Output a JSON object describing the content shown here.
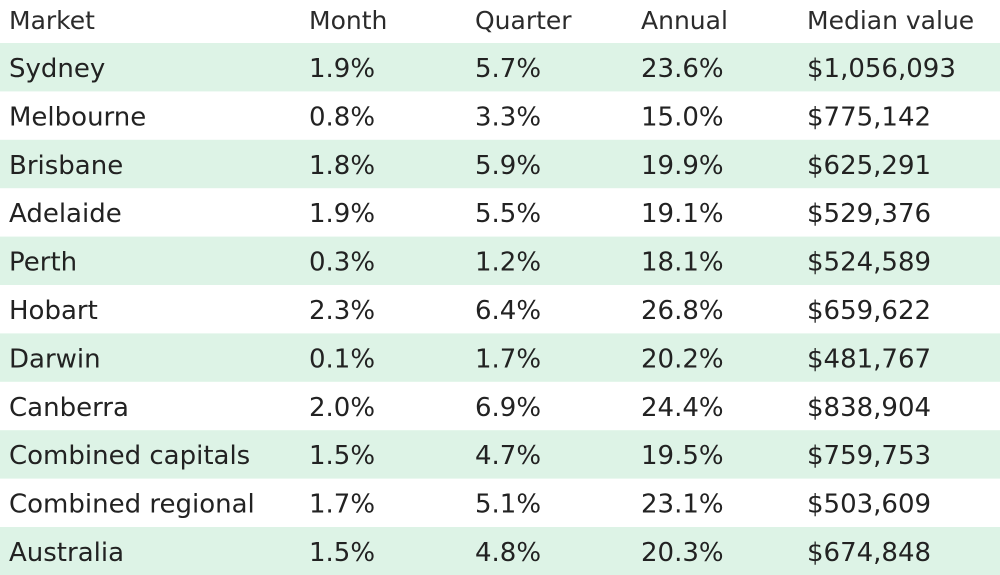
{
  "chart_data": {
    "type": "table",
    "columns": [
      "Market",
      "Month",
      "Quarter",
      "Annual",
      "Median value"
    ],
    "rows": [
      [
        "Sydney",
        "1.9%",
        "5.7%",
        "23.6%",
        "$1,056,093"
      ],
      [
        "Melbourne",
        "0.8%",
        "3.3%",
        "15.0%",
        "$775,142"
      ],
      [
        "Brisbane",
        "1.8%",
        "5.9%",
        "19.9%",
        "$625,291"
      ],
      [
        "Adelaide",
        "1.9%",
        "5.5%",
        "19.1%",
        "$529,376"
      ],
      [
        "Perth",
        "0.3%",
        "1.2%",
        "18.1%",
        "$524,589"
      ],
      [
        "Hobart",
        "2.3%",
        "6.4%",
        "26.8%",
        "$659,622"
      ],
      [
        "Darwin",
        "0.1%",
        "1.7%",
        "20.2%",
        "$481,767"
      ],
      [
        "Canberra",
        "2.0%",
        "6.9%",
        "24.4%",
        "$838,904"
      ],
      [
        "Combined capitals",
        "1.5%",
        "4.7%",
        "19.5%",
        "$759,753"
      ],
      [
        "Combined regional",
        "1.7%",
        "5.1%",
        "23.1%",
        "$503,609"
      ],
      [
        "Australia",
        "1.5%",
        "4.8%",
        "20.3%",
        "$674,848"
      ]
    ],
    "stripe_color": "#ddf3e6",
    "background_color": "#ffffff"
  }
}
